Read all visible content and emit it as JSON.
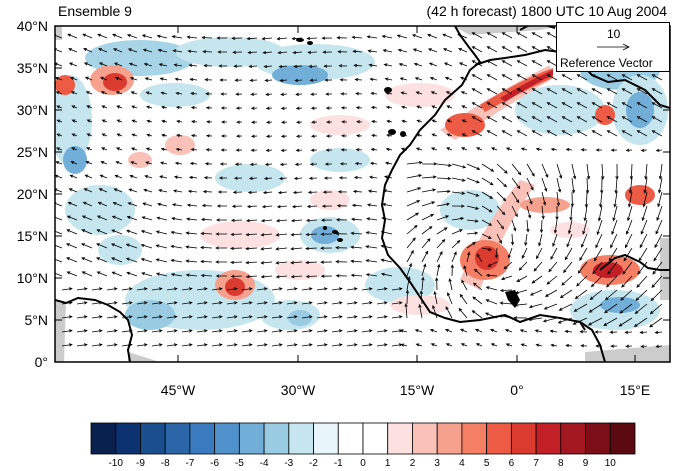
{
  "header": {
    "run_label": "Ensemble 9",
    "forecast_label": "(42 h forecast) 1800 UTC 10 Aug 2004"
  },
  "reference_vector": {
    "magnitude": "10",
    "label": "Reference Vector"
  },
  "map": {
    "lon_range": [
      -57,
      20
    ],
    "lat_range": [
      0,
      40
    ],
    "lat_labels": [
      "40°N",
      "35°N",
      "30°N",
      "25°N",
      "20°N",
      "15°N",
      "10°N",
      "5°N",
      "0°"
    ],
    "lon_labels": [
      "45°W",
      "30°W",
      "15°W",
      "0°",
      "15°E"
    ],
    "colors": {
      "land_outline": "#000000",
      "ocean": "#ffffff",
      "missing": "#cccccc"
    }
  },
  "colorbar": {
    "colors": [
      "#08214f",
      "#0c3272",
      "#1a4e8f",
      "#2b66a8",
      "#3a7bbf",
      "#4f91ca",
      "#71aed8",
      "#99cce3",
      "#c5e5ef",
      "#e8f5fa",
      "#ffffff",
      "#ffffff",
      "#fde1e1",
      "#f9c1b8",
      "#f6a18d",
      "#f47f64",
      "#ee5b44",
      "#db3a2f",
      "#c21f27",
      "#a31721",
      "#7c0e18",
      "#5a0a10"
    ],
    "labels": [
      "-10",
      "-9",
      "-8",
      "-7",
      "-6",
      "-5",
      "-4",
      "-3",
      "-2",
      "-1",
      "0",
      "1",
      "2",
      "3",
      "4",
      "5",
      "6",
      "7",
      "8",
      "9",
      "10"
    ]
  }
}
